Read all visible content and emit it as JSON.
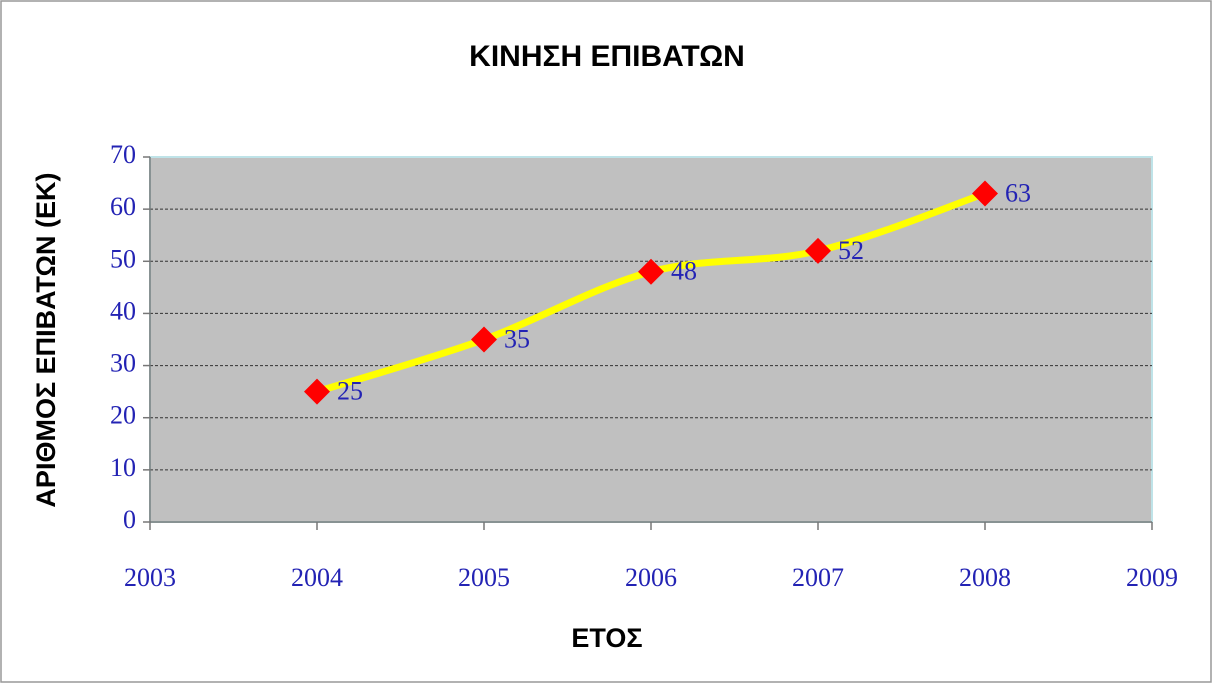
{
  "chart_data": {
    "type": "line",
    "title": "ΚΙΝΗΣΗ ΕΠΙΒΑΤΩΝ",
    "x_label": "ΕΤΟΣ",
    "y_label": "ΑΡΙΘΜΟΣ ΕΠΙΒΑΤΩΝ (ΕΚ)",
    "x": [
      2004,
      2005,
      2006,
      2007,
      2008
    ],
    "values": [
      25,
      35,
      48,
      52,
      63
    ],
    "color": "#ffff00",
    "marker_color": "#ff0000",
    "xlim": [
      2003,
      2009
    ],
    "xticks": [
      2003,
      2004,
      2005,
      2006,
      2007,
      2008,
      2009
    ],
    "ylim": [
      0,
      70
    ],
    "yticks": [
      0,
      10,
      20,
      30,
      40,
      50,
      60,
      70
    ],
    "grid": true
  }
}
